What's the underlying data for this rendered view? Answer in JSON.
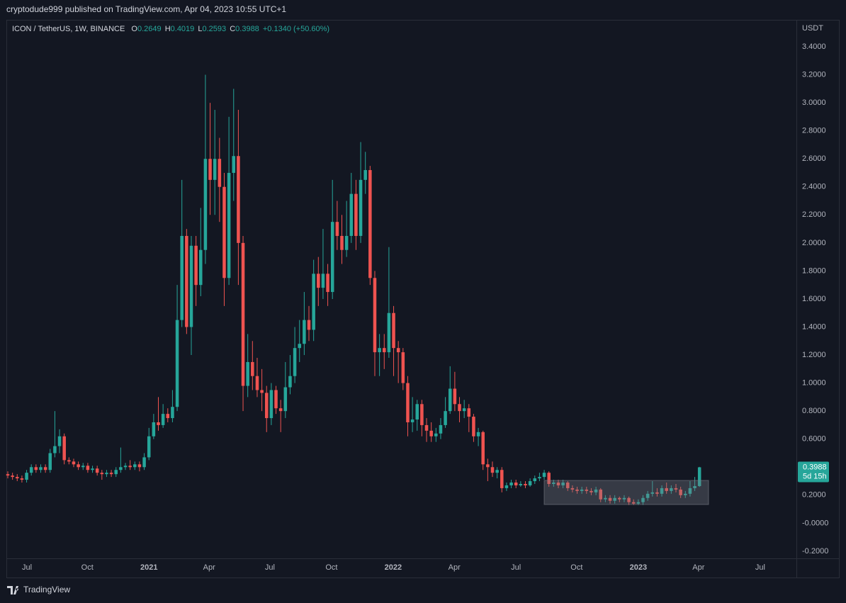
{
  "header": "cryptodude999 published on TradingView.com, Apr 04, 2023 10:55 UTC+1",
  "brand": "TradingView",
  "chart_data": {
    "type": "candlestick",
    "title": "ICON / TetherUS, 1W, BINANCE",
    "ohlc_labels": [
      "O",
      "H",
      "L",
      "C"
    ],
    "change": "+0.1340 (+50.60%)",
    "y_unit": "USDT",
    "countdown": "5d 15h",
    "up_color": "#26a69a",
    "down_color": "#ef5350",
    "grid": false,
    "xlim": [
      -0.15,
      167.6
    ],
    "ylim": [
      -0.251,
      3.582
    ],
    "xticks": [
      {
        "value": 4.07,
        "label": "Jul"
      },
      {
        "value": 16.9,
        "label": "Oct"
      },
      {
        "value": 30.0,
        "label": "2021"
      },
      {
        "value": 42.8,
        "label": "Apr"
      },
      {
        "value": 55.7,
        "label": "Jul"
      },
      {
        "value": 68.8,
        "label": "Oct"
      },
      {
        "value": 81.9,
        "label": "2022"
      },
      {
        "value": 94.9,
        "label": "Apr"
      },
      {
        "value": 108.0,
        "label": "Jul"
      },
      {
        "value": 120.9,
        "label": "Oct"
      },
      {
        "value": 134.0,
        "label": "2023"
      },
      {
        "value": 146.8,
        "label": "Apr"
      },
      {
        "value": 159.9,
        "label": "Jul"
      }
    ],
    "yticks": [
      {
        "value": 3.4,
        "label": "3.4000"
      },
      {
        "value": 3.2,
        "label": "3.2000"
      },
      {
        "value": 3.0,
        "label": "3.0000"
      },
      {
        "value": 2.8,
        "label": "2.8000"
      },
      {
        "value": 2.6,
        "label": "2.6000"
      },
      {
        "value": 2.4,
        "label": "2.4000"
      },
      {
        "value": 2.2,
        "label": "2.2000"
      },
      {
        "value": 2.0,
        "label": "2.0000"
      },
      {
        "value": 1.8,
        "label": "1.8000"
      },
      {
        "value": 1.6,
        "label": "1.6000"
      },
      {
        "value": 1.4,
        "label": "1.4000"
      },
      {
        "value": 1.2,
        "label": "1.2000"
      },
      {
        "value": 1.0,
        "label": "1.0000"
      },
      {
        "value": 0.8,
        "label": "0.8000"
      },
      {
        "value": 0.6,
        "label": "0.6000"
      },
      {
        "value": 0.4,
        "label": "0.4000"
      },
      {
        "value": 0.2,
        "label": "0.2000"
      },
      {
        "value": 0,
        "label": "-0.0000"
      },
      {
        "value": -0.2,
        "label": "-0.2000"
      }
    ],
    "open": [
      0.35,
      0.34,
      0.33,
      0.32,
      0.31,
      0.36,
      0.4,
      0.38,
      0.4,
      0.38,
      0.5,
      0.55,
      0.62,
      0.45,
      0.44,
      0.42,
      0.4,
      0.41,
      0.38,
      0.39,
      0.36,
      0.35,
      0.36,
      0.35,
      0.38,
      0.4,
      0.41,
      0.4,
      0.42,
      0.4,
      0.47,
      0.62,
      0.72,
      0.7,
      0.78,
      0.75,
      0.83,
      1.45,
      2.05,
      1.4,
      1.98,
      1.7,
      1.95,
      2.6,
      2.45,
      2.6,
      2.4,
      1.75,
      2.5,
      2.62,
      2.0,
      0.98,
      1.15,
      1.05,
      0.95,
      0.93,
      0.75,
      0.95,
      0.82,
      0.8,
      0.97,
      1.05,
      1.25,
      1.28,
      1.45,
      1.38,
      1.78,
      1.68,
      1.78,
      1.65,
      2.15,
      2.05,
      1.95,
      2.05,
      2.35,
      2.05,
      2.45,
      2.52,
      1.75,
      1.22,
      1.25,
      1.22,
      1.5,
      1.25,
      1.22,
      1.0,
      0.72,
      0.74,
      0.85,
      0.7,
      0.66,
      0.62,
      0.64,
      0.7,
      0.8,
      0.96,
      0.85,
      0.8,
      0.82,
      0.76,
      0.62,
      0.65,
      0.42,
      0.4,
      0.36,
      0.38,
      0.25,
      0.27,
      0.29,
      0.27,
      0.28,
      0.27,
      0.3,
      0.32,
      0.33,
      0.36,
      0.28,
      0.29,
      0.27,
      0.29,
      0.25,
      0.24,
      0.23,
      0.24,
      0.23,
      0.22,
      0.24,
      0.17,
      0.18,
      0.16,
      0.18,
      0.17,
      0.18,
      0.15,
      0.14,
      0.15,
      0.18,
      0.21,
      0.22,
      0.21,
      0.25,
      0.23,
      0.25,
      0.24,
      0.2,
      0.21,
      0.25,
      0.2649
    ],
    "high": [
      0.37,
      0.36,
      0.35,
      0.34,
      0.38,
      0.42,
      0.42,
      0.42,
      0.42,
      0.53,
      0.8,
      0.67,
      0.64,
      0.47,
      0.46,
      0.44,
      0.43,
      0.43,
      0.41,
      0.41,
      0.38,
      0.38,
      0.38,
      0.4,
      0.54,
      0.43,
      0.45,
      0.44,
      0.44,
      0.5,
      0.68,
      0.78,
      0.9,
      0.85,
      0.82,
      0.95,
      1.7,
      2.45,
      2.1,
      2.05,
      2.05,
      2.25,
      3.2,
      3.0,
      2.95,
      2.75,
      2.5,
      2.9,
      3.1,
      2.95,
      2.05,
      1.35,
      1.3,
      1.18,
      1.1,
      0.98,
      1.0,
      0.98,
      0.88,
      1.15,
      1.2,
      1.4,
      1.45,
      1.65,
      1.55,
      1.88,
      1.9,
      2.1,
      1.85,
      2.45,
      2.3,
      2.2,
      2.3,
      2.5,
      2.45,
      2.72,
      2.65,
      2.55,
      1.8,
      1.35,
      1.35,
      1.97,
      1.55,
      1.3,
      1.25,
      1.05,
      0.9,
      0.88,
      0.88,
      0.75,
      0.72,
      0.68,
      0.75,
      0.9,
      1.12,
      1.08,
      0.9,
      0.88,
      0.85,
      0.78,
      0.68,
      0.66,
      0.46,
      0.44,
      0.4,
      0.4,
      0.29,
      0.31,
      0.31,
      0.3,
      0.3,
      0.32,
      0.34,
      0.36,
      0.38,
      0.37,
      0.31,
      0.31,
      0.31,
      0.3,
      0.27,
      0.26,
      0.26,
      0.26,
      0.25,
      0.26,
      0.25,
      0.2,
      0.2,
      0.2,
      0.19,
      0.2,
      0.19,
      0.17,
      0.17,
      0.2,
      0.23,
      0.3,
      0.25,
      0.27,
      0.29,
      0.27,
      0.28,
      0.26,
      0.23,
      0.3,
      0.33,
      0.4019
    ],
    "low": [
      0.32,
      0.31,
      0.3,
      0.29,
      0.29,
      0.34,
      0.36,
      0.36,
      0.36,
      0.36,
      0.47,
      0.5,
      0.42,
      0.42,
      0.4,
      0.38,
      0.38,
      0.36,
      0.36,
      0.34,
      0.31,
      0.33,
      0.33,
      0.33,
      0.36,
      0.38,
      0.38,
      0.38,
      0.37,
      0.38,
      0.45,
      0.6,
      0.66,
      0.68,
      0.72,
      0.72,
      0.8,
      1.4,
      1.35,
      1.2,
      1.55,
      1.62,
      1.85,
      2.2,
      2.2,
      2.15,
      1.55,
      1.7,
      2.3,
      1.7,
      0.8,
      0.9,
      0.95,
      0.9,
      0.8,
      0.65,
      0.7,
      0.78,
      0.65,
      0.75,
      0.92,
      1.0,
      1.15,
      1.2,
      1.3,
      1.3,
      1.55,
      1.6,
      1.55,
      1.6,
      1.95,
      1.85,
      1.9,
      2.0,
      1.95,
      2.0,
      2.35,
      1.7,
      1.05,
      1.05,
      1.1,
      1.18,
      1.05,
      1.0,
      0.95,
      0.62,
      0.65,
      0.66,
      0.62,
      0.58,
      0.58,
      0.58,
      0.6,
      0.68,
      0.78,
      0.8,
      0.72,
      0.75,
      0.65,
      0.58,
      0.55,
      0.38,
      0.3,
      0.33,
      0.32,
      0.22,
      0.23,
      0.25,
      0.25,
      0.26,
      0.25,
      0.26,
      0.28,
      0.3,
      0.31,
      0.26,
      0.26,
      0.25,
      0.25,
      0.23,
      0.22,
      0.21,
      0.21,
      0.21,
      0.2,
      0.2,
      0.15,
      0.15,
      0.14,
      0.14,
      0.15,
      0.15,
      0.13,
      0.13,
      0.13,
      0.13,
      0.16,
      0.19,
      0.19,
      0.19,
      0.21,
      0.21,
      0.22,
      0.18,
      0.18,
      0.19,
      0.23,
      0.2593
    ],
    "close": [
      0.34,
      0.33,
      0.32,
      0.31,
      0.36,
      0.4,
      0.38,
      0.4,
      0.38,
      0.5,
      0.55,
      0.62,
      0.45,
      0.44,
      0.42,
      0.4,
      0.41,
      0.38,
      0.39,
      0.36,
      0.35,
      0.36,
      0.35,
      0.38,
      0.4,
      0.41,
      0.4,
      0.42,
      0.4,
      0.47,
      0.62,
      0.72,
      0.7,
      0.78,
      0.75,
      0.83,
      1.45,
      2.05,
      1.4,
      1.98,
      1.7,
      1.95,
      2.6,
      2.45,
      2.6,
      2.4,
      1.75,
      2.5,
      2.62,
      2.0,
      0.98,
      1.15,
      1.05,
      0.95,
      0.93,
      0.75,
      0.95,
      0.82,
      0.8,
      0.97,
      1.05,
      1.25,
      1.28,
      1.45,
      1.38,
      1.78,
      1.68,
      1.78,
      1.65,
      2.15,
      2.05,
      1.95,
      2.05,
      2.35,
      2.05,
      2.45,
      2.52,
      1.75,
      1.22,
      1.25,
      1.22,
      1.5,
      1.25,
      1.22,
      1.0,
      0.72,
      0.74,
      0.85,
      0.7,
      0.66,
      0.62,
      0.64,
      0.7,
      0.8,
      0.96,
      0.85,
      0.8,
      0.82,
      0.76,
      0.62,
      0.65,
      0.42,
      0.4,
      0.36,
      0.38,
      0.25,
      0.27,
      0.29,
      0.27,
      0.28,
      0.27,
      0.3,
      0.32,
      0.33,
      0.36,
      0.28,
      0.29,
      0.27,
      0.29,
      0.25,
      0.24,
      0.23,
      0.24,
      0.23,
      0.22,
      0.24,
      0.17,
      0.18,
      0.16,
      0.18,
      0.17,
      0.18,
      0.15,
      0.14,
      0.15,
      0.18,
      0.21,
      0.22,
      0.21,
      0.25,
      0.23,
      0.25,
      0.24,
      0.2,
      0.21,
      0.25,
      0.2649,
      0.3988
    ]
  }
}
